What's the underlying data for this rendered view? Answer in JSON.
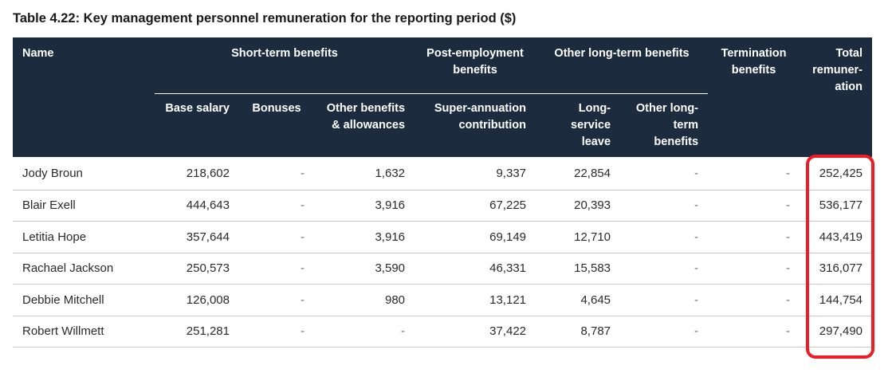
{
  "title": "Table 4.22: Key management personnel remuneration for the reporting period ($)",
  "headers": {
    "name": "Name",
    "short_term": "Short-term benefits",
    "post_employment": "Post-employment benefits",
    "other_long_term": "Other long-term benefits",
    "termination": "Termination benefits",
    "total": "Total remuner-ation",
    "base_salary": "Base salary",
    "bonuses": "Bonuses",
    "other_benefits": "Other benefits & allowances",
    "superannuation": "Super-annuation contribution",
    "long_service": "Long-service leave",
    "other_lt_benefits": "Other long-term benefits"
  },
  "rows": [
    [
      "Jody Broun",
      "218,602",
      "-",
      "1,632",
      "9,337",
      "22,854",
      "-",
      "-",
      "252,425"
    ],
    [
      "Blair Exell",
      "444,643",
      "-",
      "3,916",
      "67,225",
      "20,393",
      "-",
      "-",
      "536,177"
    ],
    [
      "Letitia Hope",
      "357,644",
      "-",
      "3,916",
      "69,149",
      "12,710",
      "-",
      "-",
      "443,419"
    ],
    [
      "Rachael Jackson",
      "250,573",
      "-",
      "3,590",
      "46,331",
      "15,583",
      "-",
      "-",
      "316,077"
    ],
    [
      "Debbie Mitchell",
      "126,008",
      "-",
      "980",
      "13,121",
      "4,645",
      "-",
      "-",
      "144,754"
    ],
    [
      "Robert Willmett",
      "251,281",
      "-",
      "-",
      "37,422",
      "8,787",
      "-",
      "-",
      "297,490"
    ]
  ],
  "highlight_color": "#ec1d24",
  "header_bg": "#1c2b3d"
}
